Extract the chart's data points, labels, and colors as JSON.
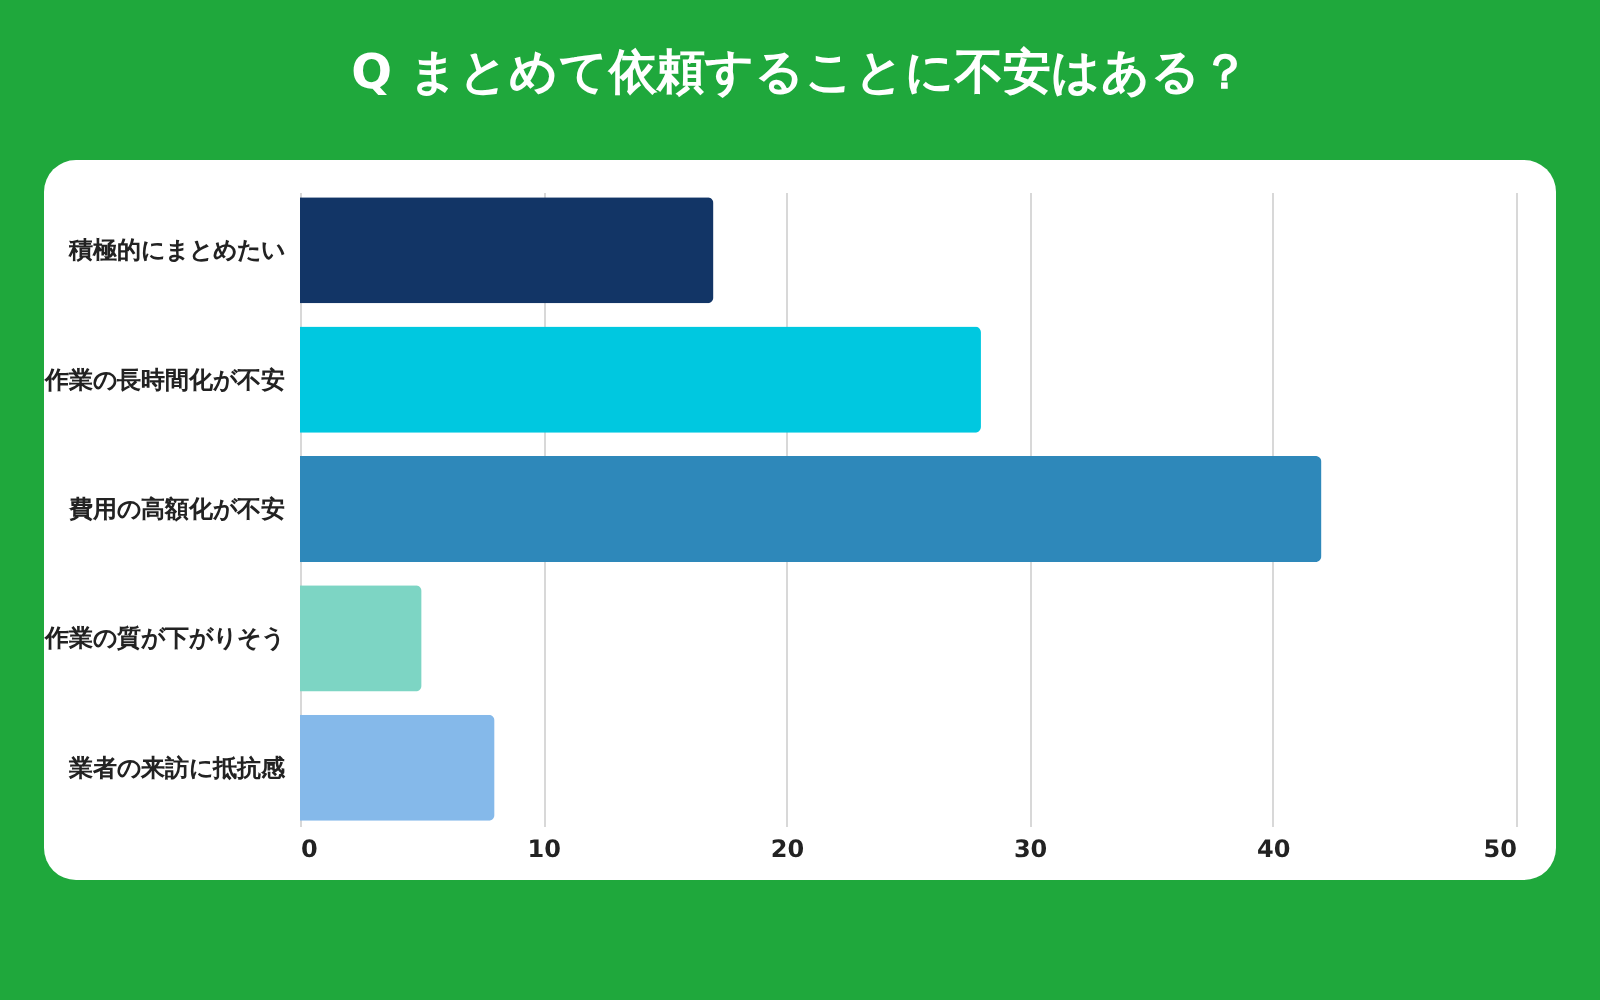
{
  "chart_data": {
    "type": "bar",
    "orientation": "horizontal",
    "title": "Q まとめて依頼することに不安はある？",
    "categories": [
      "積極的にまとめたい",
      "作業の長時間化が不安",
      "費用の高額化が不安",
      "作業の質が下がりそう",
      "業者の来訪に抵抗感"
    ],
    "values": [
      17,
      28,
      42,
      5,
      8
    ],
    "colors": [
      "#123566",
      "#00c8e0",
      "#2e88ba",
      "#7dd5c4",
      "#85b9ea"
    ],
    "xlim": [
      0,
      50
    ],
    "xticks": [
      0,
      10,
      20,
      30,
      40,
      50
    ],
    "grid": "x",
    "legend": false
  }
}
